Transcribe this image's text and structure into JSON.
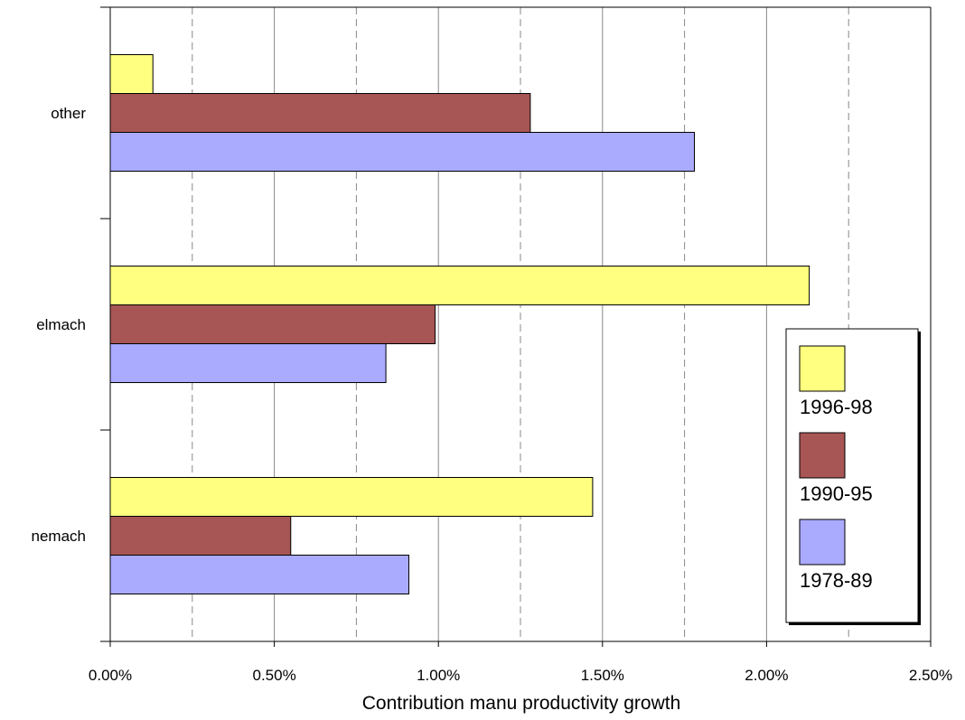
{
  "chart_data": {
    "type": "bar",
    "orientation": "horizontal",
    "categories": [
      "nemach",
      "elmach",
      "other"
    ],
    "series": [
      {
        "name": "1996-98",
        "values": [
          1.47,
          2.13,
          0.13
        ],
        "color": "#ffff80"
      },
      {
        "name": "1990-95",
        "values": [
          0.55,
          0.99,
          1.28
        ],
        "color": "#a85555"
      },
      {
        "name": "1978-89",
        "values": [
          0.91,
          0.84,
          1.78
        ],
        "color": "#aaaaff"
      }
    ],
    "xlabel": "Contribution manu productivity growth",
    "ylabel": "",
    "xlim": [
      0,
      2.5
    ],
    "x_ticks": [
      "0.00%",
      "0.50%",
      "1.00%",
      "1.50%",
      "2.00%",
      "2.50%"
    ],
    "x_tick_values": [
      0,
      0.5,
      1.0,
      1.5,
      2.0,
      2.5
    ],
    "grid": "vertical",
    "legend": {
      "placement": "right",
      "items": [
        "1996-98",
        "1990-95",
        "1978-89"
      ]
    }
  }
}
